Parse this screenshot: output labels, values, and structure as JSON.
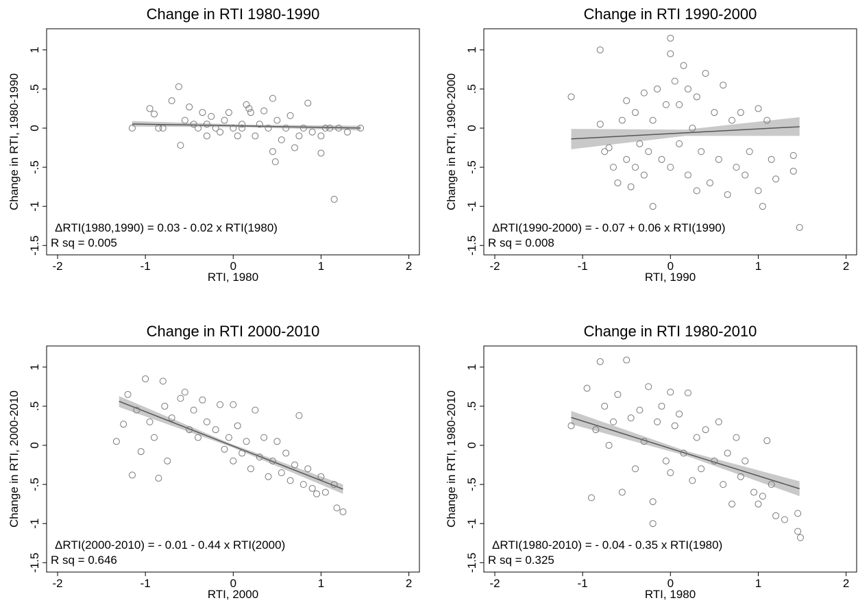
{
  "chart_data": [
    {
      "type": "scatter",
      "title": "Change in RTI 1980-1990",
      "x_label": "RTI, 1980",
      "y_label": "Change in RTI, 1980-1990",
      "annotations": [
        "ΔRTI(1980,1990) = 0.03 - 0.02 x RTI(1980)",
        "R sq = 0.005"
      ],
      "color": "#777777",
      "fit_color": "#555555",
      "band_color": "#bbbbbb",
      "xlim": [
        -2.125,
        2.12
      ],
      "ylim": [
        -1.62,
        1.27
      ],
      "xticks": [
        -2,
        -1,
        0,
        1,
        2
      ],
      "yticks": [
        1,
        {
          "value": 0.5,
          "label": ".5"
        },
        0,
        {
          "value": -0.5,
          "label": "-.5"
        },
        -1,
        -1.5
      ],
      "x": [
        -1.15,
        -0.95,
        -0.9,
        -0.85,
        -0.8,
        -0.7,
        -0.62,
        -0.6,
        -0.55,
        -0.5,
        -0.45,
        -0.4,
        -0.35,
        -0.3,
        -0.25,
        -0.2,
        -0.15,
        -0.1,
        -0.05,
        0,
        0.05,
        0.1,
        0.15,
        0.18,
        0.2,
        0.25,
        0.3,
        0.35,
        0.4,
        0.45,
        0.45,
        0.48,
        0.5,
        0.55,
        0.6,
        0.65,
        0.7,
        0.75,
        0.8,
        0.85,
        0.9,
        1.0,
        1.05,
        1.1,
        1.15,
        1.0,
        1.2,
        1.3,
        1.45,
        -0.3,
        0.1
      ],
      "values": [
        0,
        0.25,
        0.18,
        0,
        0,
        0.35,
        0.53,
        -0.22,
        0.1,
        0.27,
        0.05,
        0,
        0.2,
        -0.1,
        0.15,
        0,
        -0.05,
        0.1,
        0.2,
        0,
        -0.1,
        0.05,
        0.3,
        0.25,
        0.2,
        -0.1,
        0.05,
        0.22,
        0,
        -0.3,
        0.38,
        -0.43,
        0.1,
        -0.15,
        0,
        0.16,
        -0.25,
        -0.1,
        0,
        0.32,
        -0.05,
        -0.1,
        0,
        0,
        -0.91,
        -0.32,
        0,
        -0.05,
        0,
        0.05,
        0
      ],
      "fit": {
        "x": [
          -1.15,
          0.15,
          1.45
        ],
        "y": [
          0.053,
          0.027,
          0.001
        ],
        "ci_low": [
          0.02,
          0.01,
          -0.03
        ],
        "ci_high": [
          0.09,
          0.045,
          0.03
        ]
      }
    },
    {
      "type": "scatter",
      "title": "Change in RTI 1990-2000",
      "x_label": "RTI, 1990",
      "y_label": "Change in RTI, 1990-2000",
      "annotations": [
        "ΔRTI(1990-2000) = - 0.07 + 0.06 x RTI(1990)",
        "R sq = 0.008"
      ],
      "color": "#777777",
      "fit_color": "#555555",
      "band_color": "#bbbbbb",
      "xlim": [
        -2.125,
        2.12
      ],
      "ylim": [
        -1.62,
        1.27
      ],
      "xticks": [
        -2,
        -1,
        0,
        1,
        2
      ],
      "yticks": [
        1,
        {
          "value": 0.5,
          "label": ".5"
        },
        0,
        {
          "value": -0.5,
          "label": "-.5"
        },
        -1,
        -1.5
      ],
      "x": [
        -1.13,
        -0.8,
        -0.8,
        -0.75,
        -0.7,
        -0.65,
        -0.6,
        -0.55,
        -0.5,
        -0.5,
        -0.45,
        -0.4,
        -0.4,
        -0.35,
        -0.3,
        -0.3,
        -0.25,
        -0.2,
        -0.2,
        -0.15,
        -0.1,
        -0.05,
        0,
        0,
        0,
        0.05,
        0.1,
        0.1,
        0.15,
        0.2,
        0.2,
        0.25,
        0.3,
        0.3,
        0.35,
        0.4,
        0.45,
        0.5,
        0.55,
        0.6,
        0.65,
        0.7,
        0.75,
        0.8,
        0.85,
        0.9,
        1.0,
        1.0,
        1.05,
        1.1,
        1.15,
        1.2,
        1.4,
        1.4,
        1.47
      ],
      "values": [
        0.4,
        1.0,
        0.05,
        -0.3,
        -0.25,
        -0.5,
        -0.7,
        0.1,
        0.35,
        -0.4,
        -0.75,
        0.2,
        -0.5,
        -0.2,
        0.45,
        -0.6,
        -0.3,
        0.1,
        -1.0,
        0.5,
        -0.4,
        0.3,
        0.95,
        1.15,
        -0.5,
        0.6,
        0.3,
        -0.2,
        0.8,
        0.5,
        -0.6,
        0,
        0.4,
        -0.8,
        -0.3,
        0.7,
        -0.7,
        0.2,
        -0.4,
        0.55,
        -0.85,
        0.1,
        -0.5,
        0.2,
        -0.6,
        -0.3,
        0.25,
        -0.8,
        -1.0,
        0.1,
        -0.4,
        -0.65,
        -0.35,
        -0.55,
        -1.27
      ],
      "fit": {
        "x": [
          -1.13,
          0.17,
          1.47
        ],
        "y": [
          -0.138,
          -0.06,
          0.018
        ],
        "ci_low": [
          -0.27,
          -0.1,
          -0.1
        ],
        "ci_high": [
          -0.01,
          -0.02,
          0.14
        ]
      }
    },
    {
      "type": "scatter",
      "title": "Change in RTI 2000-2010",
      "x_label": "RTI, 2000",
      "y_label": "Change in RTI, 2000-2010",
      "annotations": [
        "ΔRTI(2000-2010) = - 0.01 - 0.44 x RTI(2000)",
        "R sq = 0.646"
      ],
      "color": "#777777",
      "fit_color": "#555555",
      "band_color": "#bbbbbb",
      "xlim": [
        -2.125,
        2.12
      ],
      "ylim": [
        -1.62,
        1.27
      ],
      "xticks": [
        -2,
        -1,
        0,
        1,
        2
      ],
      "yticks": [
        1,
        {
          "value": 0.5,
          "label": ".5"
        },
        0,
        {
          "value": -0.5,
          "label": "-.5"
        },
        -1,
        -1.5
      ],
      "x": [
        -1.33,
        -1.25,
        -1.2,
        -1.15,
        -1.1,
        -1.05,
        -1.0,
        -0.95,
        -0.9,
        -0.85,
        -0.8,
        -0.78,
        -0.75,
        -0.7,
        -0.6,
        -0.55,
        -0.5,
        -0.45,
        -0.4,
        -0.35,
        -0.3,
        -0.2,
        -0.15,
        -0.1,
        -0.05,
        0,
        0,
        0.05,
        0.1,
        0.15,
        0.2,
        0.25,
        0.3,
        0.35,
        0.4,
        0.45,
        0.5,
        0.55,
        0.6,
        0.65,
        0.7,
        0.75,
        0.8,
        0.85,
        0.9,
        0.95,
        1.0,
        1.05,
        1.15,
        1.18,
        1.25
      ],
      "values": [
        0.05,
        0.27,
        0.65,
        -0.38,
        0.45,
        -0.08,
        0.85,
        0.3,
        0.1,
        -0.42,
        0.82,
        0.5,
        -0.2,
        0.35,
        0.6,
        0.68,
        0.2,
        0.45,
        0.1,
        0.58,
        0.3,
        0.2,
        0.52,
        -0.05,
        0.1,
        0.52,
        -0.2,
        0.25,
        -0.1,
        0.05,
        -0.3,
        0.45,
        -0.15,
        0.1,
        -0.4,
        -0.2,
        0.05,
        -0.35,
        -0.1,
        -0.45,
        -0.25,
        0.38,
        -0.5,
        -0.3,
        -0.55,
        -0.62,
        -0.4,
        -0.6,
        -0.5,
        -0.8,
        -0.85
      ],
      "fit": {
        "x": [
          -1.3,
          -0.025,
          1.25
        ],
        "y": [
          0.562,
          0.001,
          -0.56
        ],
        "ci_low": [
          0.49,
          -0.02,
          -0.62
        ],
        "ci_high": [
          0.63,
          0.02,
          -0.5
        ]
      }
    },
    {
      "type": "scatter",
      "title": "Change in RTI 1980-2010",
      "x_label": "RTI, 1980",
      "y_label": "Change in RTI, 1980-2010",
      "annotations": [
        "ΔRTI(1980-2010) = - 0.04 - 0.35 x RTI(1980)",
        "R sq = 0.325"
      ],
      "color": "#777777",
      "fit_color": "#555555",
      "band_color": "#bbbbbb",
      "xlim": [
        -2.125,
        2.12
      ],
      "ylim": [
        -1.62,
        1.27
      ],
      "xticks": [
        -2,
        -1,
        0,
        1,
        2
      ],
      "yticks": [
        1,
        {
          "value": 0.5,
          "label": ".5"
        },
        0,
        {
          "value": -0.5,
          "label": "-.5"
        },
        -1,
        -1.5
      ],
      "x": [
        -1.13,
        -0.95,
        -0.9,
        -0.85,
        -0.8,
        -0.75,
        -0.7,
        -0.65,
        -0.6,
        -0.55,
        -0.5,
        -0.45,
        -0.4,
        -0.35,
        -0.3,
        -0.25,
        -0.2,
        -0.2,
        -0.15,
        -0.1,
        -0.05,
        0,
        0,
        0.05,
        0.1,
        0.15,
        0.2,
        0.25,
        0.3,
        0.35,
        0.4,
        0.5,
        0.55,
        0.6,
        0.65,
        0.7,
        0.75,
        0.8,
        0.85,
        0.95,
        1.0,
        1.05,
        1.1,
        1.15,
        1.2,
        1.3,
        1.45,
        1.45,
        1.48
      ],
      "values": [
        0.25,
        0.73,
        -0.67,
        0.2,
        1.07,
        0.5,
        0,
        0.3,
        0.65,
        -0.6,
        1.09,
        0.35,
        -0.3,
        0.45,
        0.05,
        0.75,
        -0.72,
        -1.0,
        0.3,
        0.5,
        -0.2,
        0.68,
        -0.35,
        0.25,
        0.4,
        -0.1,
        0.67,
        -0.45,
        0.1,
        -0.3,
        0.2,
        -0.2,
        0.3,
        -0.5,
        -0.1,
        -0.75,
        0.1,
        -0.4,
        -0.2,
        -0.6,
        -0.75,
        -0.65,
        0.06,
        -0.5,
        -0.9,
        -0.95,
        -0.87,
        -1.1,
        -1.18
      ],
      "fit": {
        "x": [
          -1.13,
          0.17,
          1.47
        ],
        "y": [
          0.356,
          -0.1,
          -0.555
        ],
        "ci_low": [
          0.27,
          -0.13,
          -0.65
        ],
        "ci_high": [
          0.44,
          -0.07,
          -0.46
        ]
      }
    }
  ]
}
